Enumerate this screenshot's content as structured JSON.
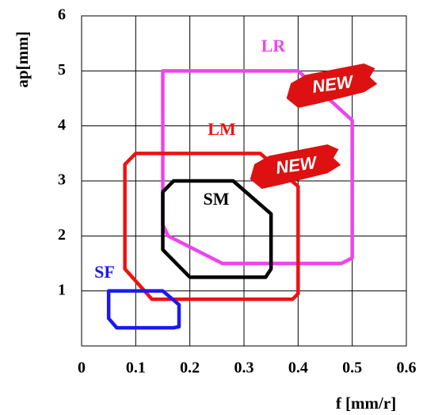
{
  "chart_data": {
    "type": "region",
    "x_label": "f [mm/r]",
    "y_label": "ap[mm]",
    "xlim": [
      0,
      0.6
    ],
    "xticks": [
      0,
      0.1,
      0.2,
      0.3,
      0.4,
      0.5,
      0.6
    ],
    "ylim": [
      0,
      6
    ],
    "yticks": [
      1,
      2,
      3,
      4,
      5,
      6
    ],
    "grid": true,
    "badges": [
      "NEW",
      "NEW"
    ],
    "series": [
      {
        "name": "LR",
        "color": "#ee44ee",
        "x": [
          0.15,
          0.15,
          0.4,
          0.5,
          0.5,
          0.48,
          0.26,
          0.16,
          0.15
        ],
        "y": [
          2.9,
          5,
          5,
          4.1,
          1.6,
          1.5,
          1.5,
          2,
          2.2
        ]
      },
      {
        "name": "LM",
        "color": "#ee1111",
        "x": [
          0.08,
          0.1,
          0.33,
          0.4,
          0.4,
          0.39,
          0.13,
          0.08
        ],
        "y": [
          3.3,
          3.5,
          3.5,
          2.9,
          0.95,
          0.85,
          0.85,
          1.4
        ]
      },
      {
        "name": "SM",
        "color": "#000000",
        "x": [
          0.17,
          0.28,
          0.35,
          0.35,
          0.34,
          0.2,
          0.15,
          0.15
        ],
        "y": [
          3,
          3,
          2.4,
          1.4,
          1.25,
          1.25,
          1.75,
          2.8
        ]
      },
      {
        "name": "SF",
        "color": "#1a1aee",
        "x": [
          0.05,
          0.15,
          0.18,
          0.18,
          0.17,
          0.065,
          0.05
        ],
        "y": [
          1,
          1,
          0.75,
          0.35,
          0.33,
          0.33,
          0.5
        ]
      }
    ]
  }
}
